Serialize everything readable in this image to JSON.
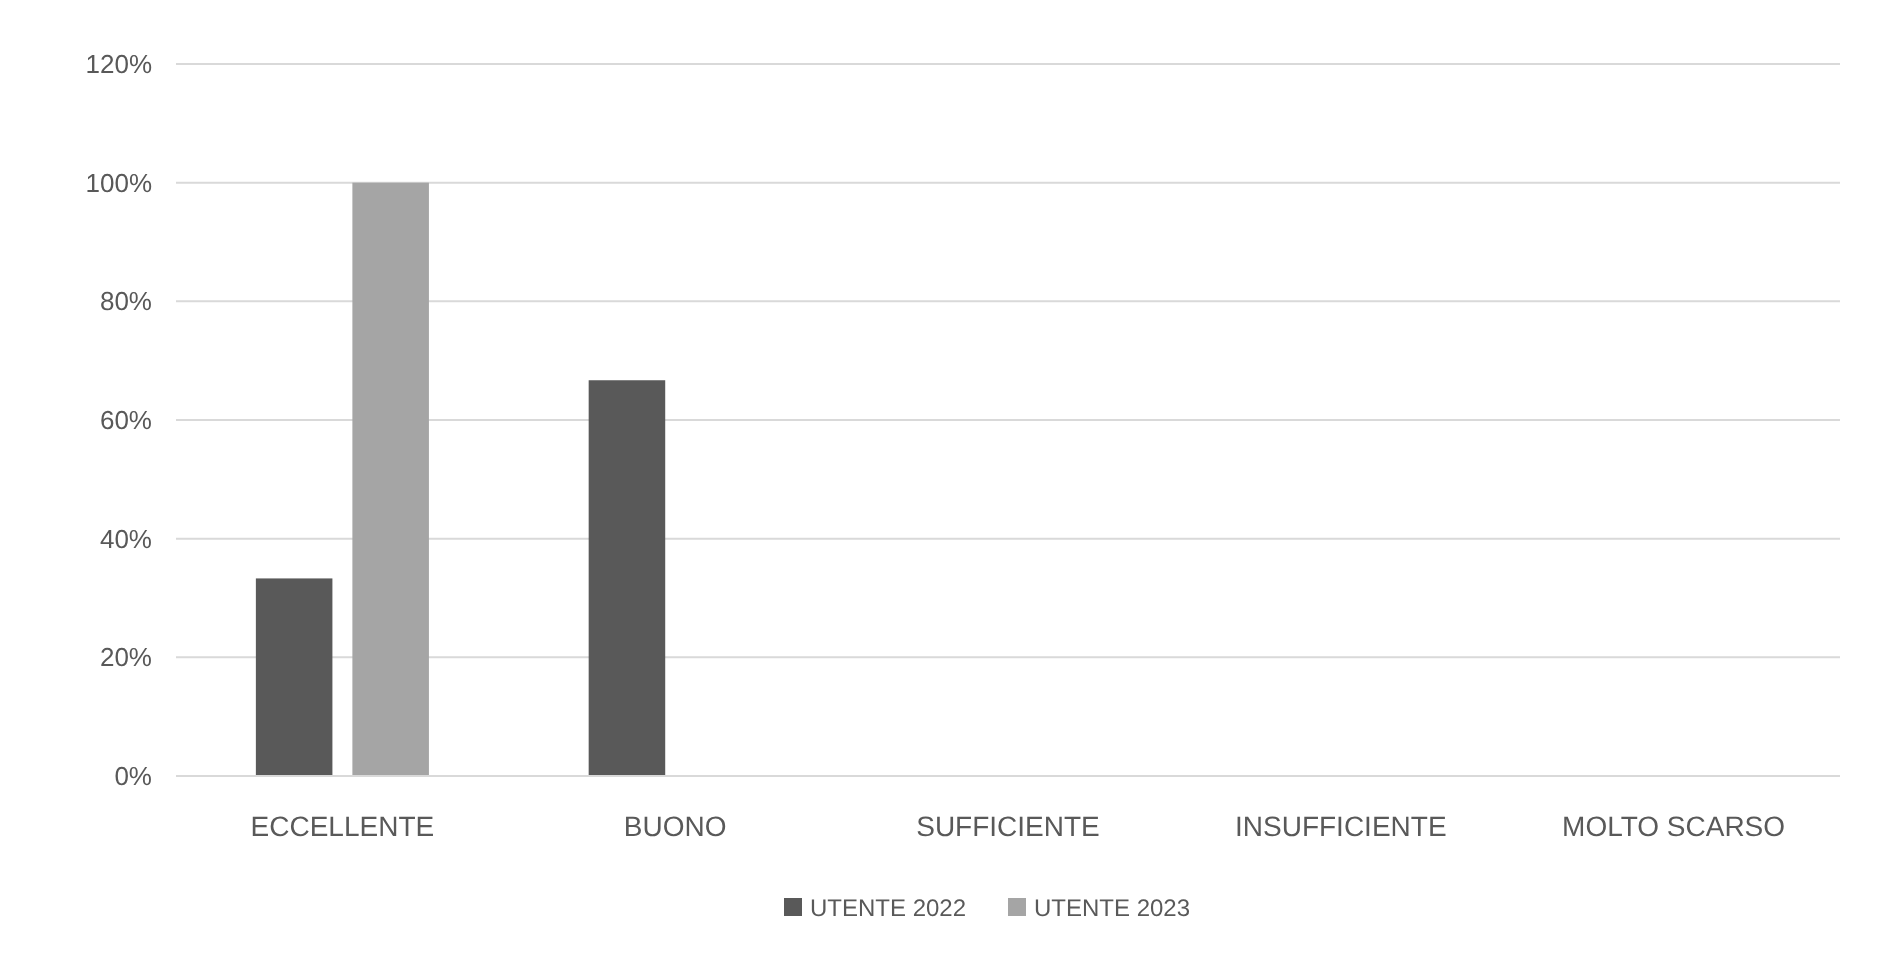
{
  "chart_data": {
    "type": "bar",
    "categories": [
      "ECCELLENTE",
      "BUONO",
      "SUFFICIENTE",
      "INSUFFICIENTE",
      "MOLTO SCARSO"
    ],
    "series": [
      {
        "name": "UTENTE 2022",
        "color": "#595959",
        "values": [
          33.3,
          66.7,
          0,
          0,
          0
        ]
      },
      {
        "name": "UTENTE 2023",
        "color": "#a5a5a5",
        "values": [
          100,
          0,
          0,
          0,
          0
        ]
      }
    ],
    "ylim": [
      0,
      120
    ],
    "yticks": [
      {
        "value": 0,
        "label": "0%"
      },
      {
        "value": 20,
        "label": "20%"
      },
      {
        "value": 40,
        "label": "40%"
      },
      {
        "value": 60,
        "label": "60%"
      },
      {
        "value": 80,
        "label": "80%"
      },
      {
        "value": 100,
        "label": "100%"
      },
      {
        "value": 120,
        "label": "120%"
      }
    ],
    "grid": "y",
    "legend": "bottom"
  }
}
